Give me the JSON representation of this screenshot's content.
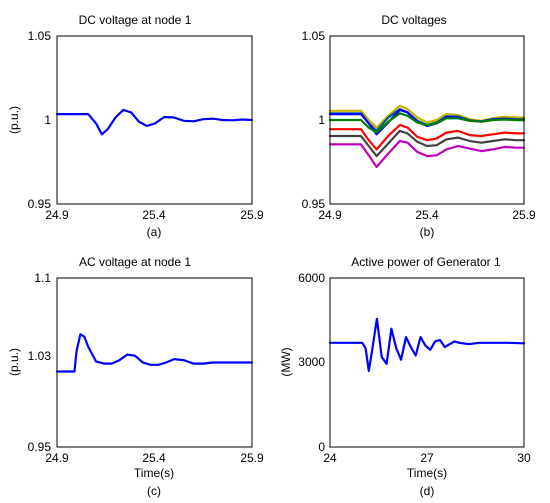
{
  "chart_data": [
    {
      "type": "line",
      "title": "DC voltage at node 1",
      "xlabel": "",
      "ylabel": "(p.u.)",
      "caption": "(a)",
      "xlim": [
        24.9,
        25.9
      ],
      "ylim": [
        0.95,
        1.05
      ],
      "xticks": [
        "24.9",
        "25.4",
        "25.9"
      ],
      "yticks": [
        "0.95",
        "1",
        "1.05"
      ],
      "grid": false,
      "series": [
        {
          "color": "#0000ff",
          "x": [
            24.9,
            25.0,
            25.06,
            25.1,
            25.13,
            25.16,
            25.2,
            25.24,
            25.28,
            25.32,
            25.36,
            25.4,
            25.45,
            25.5,
            25.55,
            25.6,
            25.65,
            25.7,
            25.75,
            25.8,
            25.85,
            25.9
          ],
          "y": [
            1.0035,
            1.0035,
            1.0035,
            0.998,
            0.9915,
            0.9945,
            1.0015,
            1.006,
            1.0045,
            0.999,
            0.9965,
            0.9978,
            1.0018,
            1.0015,
            0.9995,
            0.9992,
            1.0005,
            1.0008,
            1.0,
            0.9998,
            1.0003,
            1.0
          ]
        }
      ]
    },
    {
      "type": "line",
      "title": "DC voltages",
      "xlabel": "",
      "ylabel": "",
      "caption": "(b)",
      "xlim": [
        24.9,
        25.9
      ],
      "ylim": [
        0.95,
        1.05
      ],
      "xticks": [
        "24.9",
        "25.4",
        "25.9"
      ],
      "yticks": [
        "0.95",
        "1",
        "1.05"
      ],
      "grid": false,
      "series": [
        {
          "color": "#c8b400",
          "x": [
            24.9,
            25.06,
            25.1,
            25.14,
            25.2,
            25.26,
            25.3,
            25.35,
            25.4,
            25.45,
            25.5,
            25.56,
            25.62,
            25.68,
            25.74,
            25.8,
            25.86,
            25.9
          ],
          "y": [
            1.0055,
            1.0055,
            1.0,
            0.9955,
            1.0025,
            1.0085,
            1.0065,
            1.0015,
            0.9985,
            1.0,
            1.0035,
            1.003,
            1.0005,
            0.9995,
            1.001,
            1.002,
            1.0015,
            1.0015
          ]
        },
        {
          "color": "#005a8c",
          "x": [
            24.9,
            25.06,
            25.1,
            25.14,
            25.2,
            25.26,
            25.3,
            25.35,
            25.4,
            25.45,
            25.5,
            25.56,
            25.62,
            25.68,
            25.74,
            25.8,
            25.86,
            25.9
          ],
          "y": [
            1.004,
            1.004,
            0.998,
            0.9935,
            1.0015,
            1.0065,
            1.0045,
            0.9995,
            0.997,
            0.9985,
            1.0022,
            1.002,
            0.9998,
            0.999,
            1.0003,
            1.0008,
            1.0004,
            1.0005
          ]
        },
        {
          "color": "#0000ff",
          "x": [
            24.9,
            25.06,
            25.1,
            25.14,
            25.2,
            25.26,
            25.3,
            25.35,
            25.4,
            25.45,
            25.5,
            25.56,
            25.62,
            25.68,
            25.74,
            25.8,
            25.86,
            25.9
          ],
          "y": [
            1.0035,
            1.0035,
            0.998,
            0.9915,
            0.9985,
            1.006,
            1.0045,
            0.999,
            0.9965,
            0.998,
            1.0018,
            1.0015,
            0.9995,
            0.9992,
            1.0005,
            1.0008,
            1.0002,
            1.0
          ]
        },
        {
          "color": "#008000",
          "x": [
            24.9,
            25.06,
            25.1,
            25.14,
            25.2,
            25.26,
            25.3,
            25.35,
            25.4,
            25.45,
            25.5,
            25.56,
            25.62,
            25.68,
            25.74,
            25.8,
            25.86,
            25.9
          ],
          "y": [
            1.0,
            1.0,
            0.9955,
            0.9925,
            0.999,
            1.004,
            1.0025,
            0.9985,
            0.997,
            0.998,
            1.001,
            1.001,
            0.9995,
            0.999,
            1.0,
            1.0003,
            0.9999,
            0.9999
          ]
        },
        {
          "color": "#ff0000",
          "x": [
            24.9,
            25.06,
            25.1,
            25.14,
            25.2,
            25.26,
            25.3,
            25.35,
            25.4,
            25.45,
            25.5,
            25.56,
            25.62,
            25.68,
            25.74,
            25.8,
            25.86,
            25.9
          ],
          "y": [
            0.9945,
            0.9945,
            0.988,
            0.9825,
            0.9905,
            0.997,
            0.9955,
            0.99,
            0.988,
            0.989,
            0.9925,
            0.9935,
            0.991,
            0.9905,
            0.9915,
            0.9925,
            0.992,
            0.992
          ]
        },
        {
          "color": "#404040",
          "x": [
            24.9,
            25.06,
            25.1,
            25.14,
            25.2,
            25.26,
            25.3,
            25.35,
            25.4,
            25.45,
            25.5,
            25.56,
            25.62,
            25.68,
            25.74,
            25.8,
            25.86,
            25.9
          ],
          "y": [
            0.9905,
            0.9905,
            0.9845,
            0.9785,
            0.986,
            0.9935,
            0.992,
            0.987,
            0.9845,
            0.985,
            0.9885,
            0.9895,
            0.9875,
            0.9865,
            0.9875,
            0.9885,
            0.988,
            0.988
          ]
        },
        {
          "color": "#c000c0",
          "x": [
            24.9,
            25.06,
            25.1,
            25.14,
            25.2,
            25.26,
            25.3,
            25.35,
            25.4,
            25.45,
            25.5,
            25.56,
            25.62,
            25.68,
            25.74,
            25.8,
            25.86,
            25.9
          ],
          "y": [
            0.9855,
            0.9855,
            0.979,
            0.972,
            0.98,
            0.9875,
            0.9865,
            0.981,
            0.9785,
            0.979,
            0.9825,
            0.9845,
            0.983,
            0.9815,
            0.9825,
            0.984,
            0.9835,
            0.9835
          ]
        }
      ]
    },
    {
      "type": "line",
      "title": "AC voltage at node 1",
      "xlabel": "Time(s)",
      "ylabel": "(p.u.)",
      "caption": "(c)",
      "xlim": [
        24.9,
        25.9
      ],
      "ylim": [
        0.95,
        1.1
      ],
      "xticks": [
        "24.9",
        "25.4",
        "25.9"
      ],
      "yticks": [
        "0.95",
        "1.03",
        "1.1"
      ],
      "ytick_values": [
        0.95,
        1.03,
        1.1
      ],
      "grid": false,
      "series": [
        {
          "color": "#0000ff",
          "x": [
            24.9,
            24.99,
            25.0,
            25.02,
            25.04,
            25.06,
            25.1,
            25.14,
            25.18,
            25.22,
            25.26,
            25.3,
            25.34,
            25.38,
            25.42,
            25.46,
            25.5,
            25.55,
            25.6,
            25.65,
            25.7,
            25.75,
            25.8,
            25.9
          ],
          "y": [
            1.017,
            1.017,
            1.035,
            1.05,
            1.048,
            1.039,
            1.026,
            1.024,
            1.024,
            1.027,
            1.032,
            1.031,
            1.025,
            1.023,
            1.023,
            1.025,
            1.028,
            1.027,
            1.024,
            1.024,
            1.025,
            1.025,
            1.025,
            1.025
          ]
        }
      ]
    },
    {
      "type": "line",
      "title": "Active power of Generator 1",
      "xlabel": "Time(s)",
      "ylabel": "(MW)",
      "caption": "(d)",
      "xlim": [
        24,
        30
      ],
      "ylim": [
        0,
        6000
      ],
      "xticks": [
        "24",
        "27",
        "30"
      ],
      "yticks": [
        "0",
        "3000",
        "6000"
      ],
      "grid": false,
      "series": [
        {
          "color": "#0000ff",
          "x": [
            24,
            25,
            25.1,
            25.2,
            25.3,
            25.45,
            25.6,
            25.75,
            25.9,
            26.05,
            26.2,
            26.35,
            26.5,
            26.65,
            26.8,
            26.95,
            27.1,
            27.25,
            27.4,
            27.55,
            27.7,
            27.85,
            28.0,
            28.3,
            28.6,
            29.0,
            29.5,
            30
          ],
          "y": [
            3700,
            3700,
            3500,
            2700,
            3400,
            4550,
            3200,
            2950,
            4200,
            3500,
            3100,
            3900,
            3550,
            3250,
            3900,
            3600,
            3450,
            3750,
            3800,
            3550,
            3650,
            3750,
            3700,
            3650,
            3700,
            3700,
            3700,
            3680
          ]
        }
      ]
    }
  ]
}
